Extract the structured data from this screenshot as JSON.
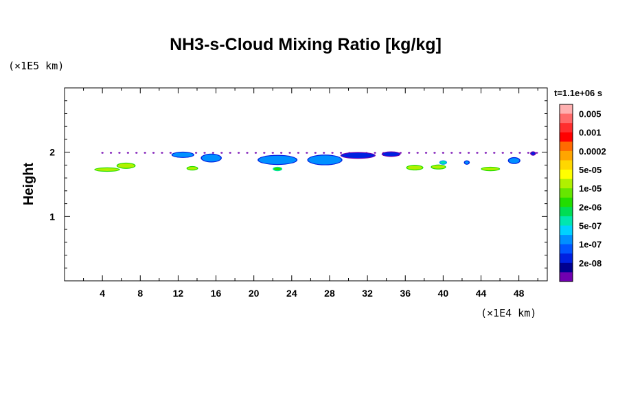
{
  "chart_data": {
    "type": "heatmap",
    "title": "NH3-s-Cloud Mixing Ratio [kg/kg]",
    "xlabel": "",
    "ylabel": "Height",
    "x_unit": "(×1E4 km)",
    "y_unit": "(×1E5 km)",
    "time_label": "t=1.1e+06 s",
    "xlim": [
      0,
      51
    ],
    "ylim": [
      0,
      3
    ],
    "xticks": [
      4,
      8,
      12,
      16,
      20,
      24,
      28,
      32,
      36,
      40,
      44,
      48
    ],
    "xtick_labels": [
      "4",
      "8",
      "12",
      "16",
      "20",
      "24",
      "28",
      "32",
      "36",
      "40",
      "44",
      "48"
    ],
    "yticks": [
      1,
      2
    ],
    "ytick_labels": [
      "1",
      "2"
    ],
    "legend": {
      "position": "right",
      "levels": [
        "0.005",
        "0.001",
        "0.0002",
        "5e-05",
        "1e-05",
        "2e-06",
        "5e-07",
        "1e-07",
        "2e-08"
      ],
      "colors": [
        "#ffb0b0",
        "#ff6a6a",
        "#ff2e2e",
        "#ff0000",
        "#ff6a00",
        "#ffa500",
        "#ffd700",
        "#ffff00",
        "#b0f000",
        "#66e600",
        "#22dd00",
        "#00dd55",
        "#00e6b0",
        "#00d2ff",
        "#0090ff",
        "#0055ff",
        "#0020e0",
        "#000090",
        "#7000b0"
      ]
    },
    "cloud_features": [
      {
        "x": 4.5,
        "y": 1.73,
        "w": 2.5,
        "h": 0.04,
        "level": "5e-05"
      },
      {
        "x": 6.5,
        "y": 1.79,
        "w": 1.8,
        "h": 0.07,
        "level": "5e-05"
      },
      {
        "x": 12.5,
        "y": 1.96,
        "w": 2.2,
        "h": 0.07,
        "level": "5e-07"
      },
      {
        "x": 13.5,
        "y": 1.75,
        "w": 1.0,
        "h": 0.03,
        "level": "5e-05"
      },
      {
        "x": 15.5,
        "y": 1.91,
        "w": 2.0,
        "h": 0.11,
        "level": "5e-07"
      },
      {
        "x": 22.5,
        "y": 1.88,
        "w": 4.0,
        "h": 0.13,
        "level": "5e-07"
      },
      {
        "x": 22.5,
        "y": 1.74,
        "w": 0.8,
        "h": 0.04,
        "level": "1e-05"
      },
      {
        "x": 27.5,
        "y": 1.88,
        "w": 3.5,
        "h": 0.14,
        "level": "5e-07"
      },
      {
        "x": 31.0,
        "y": 1.95,
        "w": 3.5,
        "h": 0.08,
        "level": "1e-07"
      },
      {
        "x": 34.5,
        "y": 1.97,
        "w": 1.8,
        "h": 0.06,
        "level": "1e-07"
      },
      {
        "x": 37.0,
        "y": 1.76,
        "w": 1.6,
        "h": 0.06,
        "level": "5e-05"
      },
      {
        "x": 39.5,
        "y": 1.77,
        "w": 1.4,
        "h": 0.05,
        "level": "5e-05"
      },
      {
        "x": 40.0,
        "y": 1.84,
        "w": 0.6,
        "h": 0.03,
        "level": "2e-06"
      },
      {
        "x": 42.5,
        "y": 1.84,
        "w": 0.4,
        "h": 0.03,
        "level": "5e-07"
      },
      {
        "x": 45.0,
        "y": 1.74,
        "w": 1.8,
        "h": 0.04,
        "level": "5e-05"
      },
      {
        "x": 47.5,
        "y": 1.87,
        "w": 1.1,
        "h": 0.08,
        "level": "5e-07"
      },
      {
        "x": 49.5,
        "y": 1.98,
        "w": 0.4,
        "h": 0.04,
        "level": "1e-07"
      }
    ],
    "cloud_band": {
      "y": 1.99,
      "xmin": 4.0,
      "xmax": 50.0,
      "level": "2e-08"
    }
  }
}
